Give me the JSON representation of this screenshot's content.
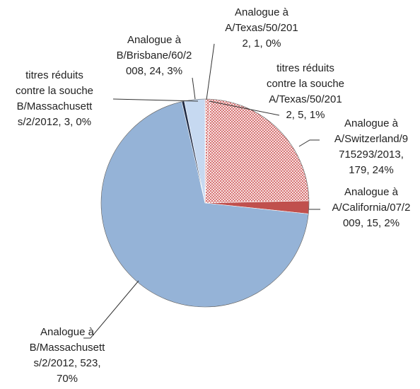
{
  "chart_data": {
    "type": "pie",
    "values": [
      1,
      5,
      179,
      15,
      523,
      3,
      24
    ],
    "value_labels": [
      [
        "Analogue à",
        "A/Texas/50/201",
        "2, 1, 0%"
      ],
      [
        "titres réduits",
        "contre la souche",
        "A/Texas/50/201",
        "2, 5, 1%"
      ],
      [
        "Analogue à",
        "A/Switzerland/9",
        "715293/2013,",
        "179, 24%"
      ],
      [
        "Analogue à",
        "A/California/07/2",
        "009, 15, 2%"
      ],
      [
        "Analogue à",
        "B/Massachusett",
        "s/2/2012, 523,",
        "70%"
      ],
      [
        "titres réduits",
        "contre la souche",
        "B/Massachusett",
        "s/2/2012, 3, 0%"
      ],
      [
        "Analogue à",
        "B/Brisbane/60/2",
        "008, 24, 3%"
      ]
    ],
    "colors": [
      "#c0504d",
      "#f2c4c4",
      "#f2c4c4",
      "#c0504d",
      "#95b3d7",
      "#1f2a44",
      "#c6d9f1"
    ],
    "patterns": [
      null,
      "crosshatch",
      "crosshatch",
      null,
      null,
      null,
      null
    ]
  }
}
